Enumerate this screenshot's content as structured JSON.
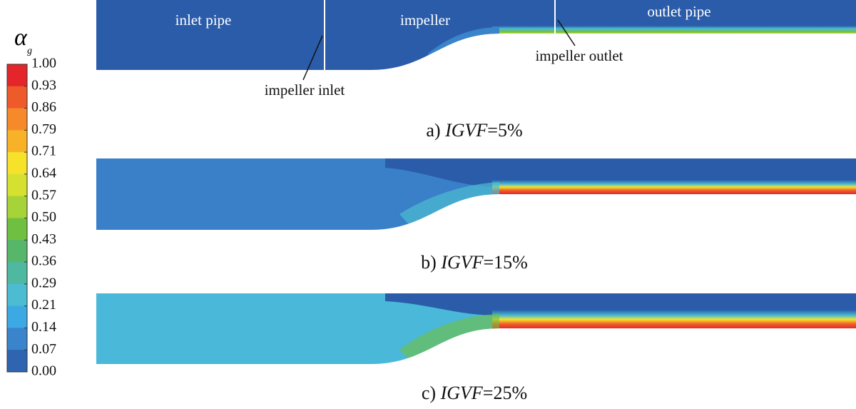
{
  "colorbar": {
    "symbol": "α",
    "subscript": "g",
    "ticks": [
      "1.00",
      "0.93",
      "0.86",
      "0.79",
      "0.71",
      "0.64",
      "0.57",
      "0.50",
      "0.43",
      "0.36",
      "0.29",
      "0.21",
      "0.14",
      "0.07",
      "0.00"
    ]
  },
  "annotations": {
    "inlet_pipe": "inlet pipe",
    "impeller": "impeller",
    "outlet_pipe": "outlet pipe",
    "impeller_inlet": "impeller inlet",
    "impeller_outlet": "impeller outlet"
  },
  "panels": [
    {
      "prefix": "a)",
      "variable": "IGVF",
      "value": "=5%"
    },
    {
      "prefix": "b)",
      "variable": "IGVF",
      "value": "=15%"
    },
    {
      "prefix": "c)",
      "variable": "IGVF",
      "value": "=25%"
    }
  ]
}
